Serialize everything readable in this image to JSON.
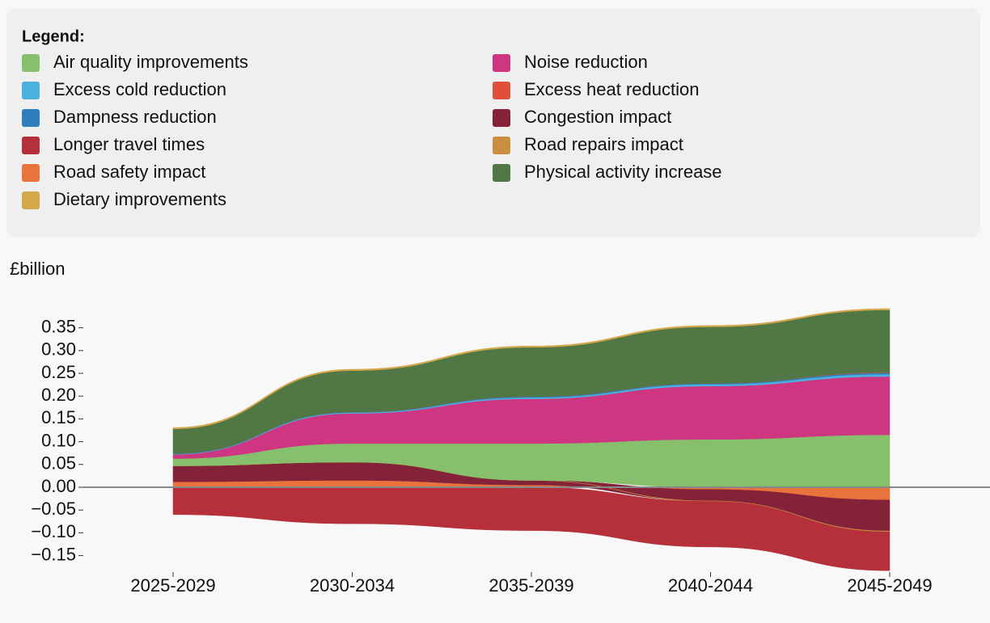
{
  "chart_data": {
    "type": "stacked-area",
    "legend_title": "Legend:",
    "y_label": "£billion",
    "categories": [
      "2025-2029",
      "2030-2034",
      "2035-2039",
      "2040-2044",
      "2045-2049"
    ],
    "ylim": [
      -0.19,
      0.4
    ],
    "yticks": [
      {
        "value": -0.15,
        "label": "−0.15"
      },
      {
        "value": -0.1,
        "label": "−0.10"
      },
      {
        "value": -0.05,
        "label": "−0.05"
      },
      {
        "value": 0,
        "label": "0.00"
      },
      0.05,
      {
        "value": 0.1,
        "label": "0.10"
      },
      0.15,
      {
        "value": 0.2,
        "label": "0.20"
      },
      0.25,
      {
        "value": 0.3,
        "label": "0.30"
      },
      0.35
    ],
    "series": [
      {
        "name": "Air quality improvements",
        "color": "#86c06c",
        "values": [
          0.016,
          0.041,
          0.081,
          0.105,
          0.115
        ]
      },
      {
        "name": "Excess cold reduction",
        "color": "#4ab0dc",
        "values": [
          0.001,
          0.002,
          0.003,
          0.004,
          0.005
        ]
      },
      {
        "name": "Dampness reduction",
        "color": "#2d7ebe",
        "values": [
          0.001,
          0.001,
          0.002,
          0.002,
          0.003
        ]
      },
      {
        "name": "Longer travel times",
        "color": "#b5303a",
        "values": [
          -0.06,
          -0.08,
          -0.095,
          -0.1,
          -0.085
        ]
      },
      {
        "name": "Road safety impact",
        "color": "#e8733d",
        "values": [
          0.012,
          0.015,
          0.005,
          -0.005,
          -0.028
        ]
      },
      {
        "name": "Dietary improvements",
        "color": "#d4a84a",
        "values": [
          0.003,
          0.003,
          0.003,
          0.003,
          0.003
        ]
      },
      {
        "name": "Noise reduction",
        "color": "#cf3681",
        "values": [
          0.009,
          0.066,
          0.098,
          0.117,
          0.128
        ]
      },
      {
        "name": "Excess heat reduction",
        "color": "#e04e3a",
        "values": [
          0,
          0,
          0,
          0,
          0.001
        ]
      },
      {
        "name": "Congestion impact",
        "color": "#84223a",
        "values": [
          0.035,
          0.04,
          0.01,
          -0.025,
          -0.068
        ]
      },
      {
        "name": "Road repairs impact",
        "color": "#c98e3f",
        "values": [
          0,
          0,
          0,
          -0.001,
          -0.002
        ]
      },
      {
        "name": "Physical activity increase",
        "color": "#517745",
        "values": [
          0.054,
          0.091,
          0.108,
          0.124,
          0.137
        ]
      }
    ]
  }
}
